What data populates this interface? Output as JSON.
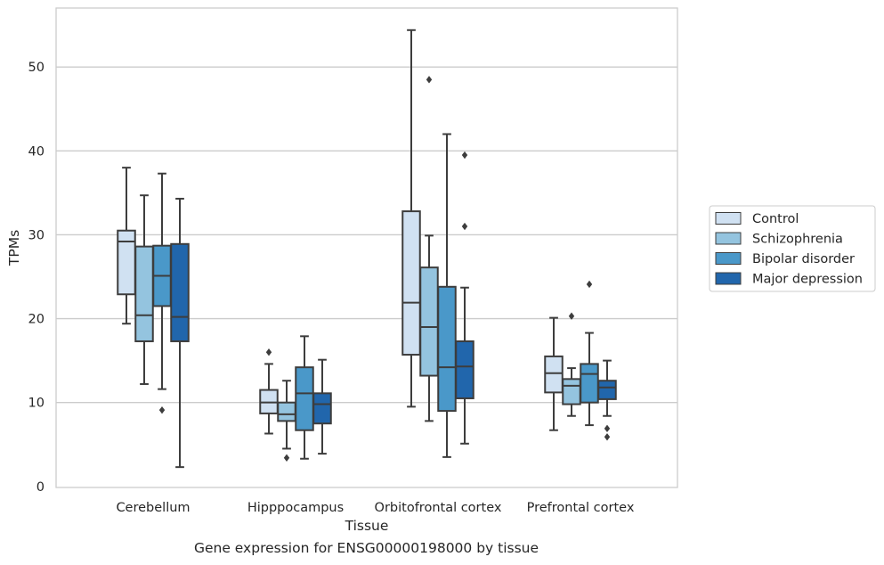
{
  "chart_data": {
    "type": "box",
    "caption": "Gene expression for ENSG00000198000 by tissue",
    "xlabel": "Tissue",
    "ylabel": "TPMs",
    "ylim": [
      0,
      56.5
    ],
    "yticks": [
      0,
      10,
      20,
      30,
      40,
      50
    ],
    "grid": "horizontal",
    "legend_position": "right",
    "categories": [
      "Cerebellum",
      "Hipppocampus",
      "Orbitofrontal cortex",
      "Prefrontal cortex"
    ],
    "series": [
      {
        "name": "Control",
        "color": "#d0e1f2",
        "boxes": [
          {
            "min": 19.4,
            "q1": 22.9,
            "median": 29.2,
            "q3": 30.5,
            "max": 38.0,
            "outliers": []
          },
          {
            "min": 6.3,
            "q1": 8.7,
            "median": 10.0,
            "q3": 11.5,
            "max": 14.6,
            "outliers": [
              16.0
            ]
          },
          {
            "min": 9.5,
            "q1": 15.7,
            "median": 21.9,
            "q3": 32.8,
            "max": 54.4,
            "outliers": []
          },
          {
            "min": 6.7,
            "q1": 11.2,
            "median": 13.5,
            "q3": 15.5,
            "max": 20.1,
            "outliers": []
          }
        ]
      },
      {
        "name": "Schizophrenia",
        "color": "#94c4df",
        "boxes": [
          {
            "min": 12.2,
            "q1": 17.3,
            "median": 20.4,
            "q3": 28.6,
            "max": 34.7,
            "outliers": []
          },
          {
            "min": 4.5,
            "q1": 7.8,
            "median": 8.6,
            "q3": 10.0,
            "max": 12.6,
            "outliers": [
              3.4
            ]
          },
          {
            "min": 7.8,
            "q1": 13.2,
            "median": 19.0,
            "q3": 26.1,
            "max": 29.9,
            "outliers": [
              48.5
            ]
          },
          {
            "min": 8.4,
            "q1": 9.8,
            "median": 12.0,
            "q3": 12.8,
            "max": 14.1,
            "outliers": [
              20.3
            ]
          }
        ]
      },
      {
        "name": "Bipolar disorder",
        "color": "#4a98c9",
        "boxes": [
          {
            "min": 11.6,
            "q1": 21.5,
            "median": 25.1,
            "q3": 28.7,
            "max": 37.3,
            "outliers": [
              9.1
            ]
          },
          {
            "min": 3.3,
            "q1": 6.7,
            "median": 11.1,
            "q3": 14.2,
            "max": 17.9,
            "outliers": []
          },
          {
            "min": 3.5,
            "q1": 9.0,
            "median": 14.2,
            "q3": 23.8,
            "max": 42.0,
            "outliers": []
          },
          {
            "min": 7.3,
            "q1": 10.0,
            "median": 13.4,
            "q3": 14.6,
            "max": 18.3,
            "outliers": [
              24.1
            ]
          }
        ]
      },
      {
        "name": "Major depression",
        "color": "#2166ac",
        "boxes": [
          {
            "min": 2.3,
            "q1": 17.3,
            "median": 20.2,
            "q3": 28.9,
            "max": 34.3,
            "outliers": []
          },
          {
            "min": 3.9,
            "q1": 7.5,
            "median": 9.8,
            "q3": 11.1,
            "max": 15.1,
            "outliers": []
          },
          {
            "min": 5.1,
            "q1": 10.5,
            "median": 14.3,
            "q3": 17.3,
            "max": 23.7,
            "outliers": [
              31.0,
              39.5
            ]
          },
          {
            "min": 8.4,
            "q1": 10.4,
            "median": 11.8,
            "q3": 12.6,
            "max": 15.0,
            "outliers": [
              6.9,
              5.9
            ]
          }
        ]
      }
    ]
  }
}
